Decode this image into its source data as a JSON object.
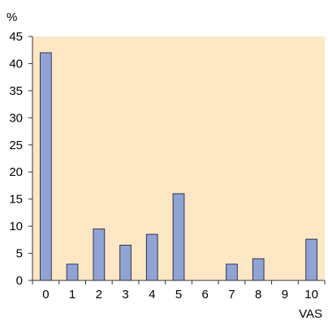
{
  "chart_data": {
    "type": "bar",
    "title": "",
    "ylabel": "%",
    "xlabel": "VAS",
    "categories": [
      "0",
      "1",
      "2",
      "3",
      "4",
      "5",
      "6",
      "7",
      "8",
      "9",
      "10"
    ],
    "values": [
      42,
      3,
      9.5,
      6.5,
      8.5,
      16,
      0,
      3,
      4,
      0,
      7.6
    ],
    "ylim": [
      0,
      45
    ],
    "yticks": [
      "0",
      "5",
      "10",
      "15",
      "20",
      "25",
      "30",
      "35",
      "40",
      "45"
    ],
    "grid": false,
    "legend": "none",
    "colors": {
      "plot_background": "#FDE7C4",
      "bar_fill": "#91A3D5",
      "bar_stroke": "#2B3550",
      "axis": "#333333",
      "text": "#000000"
    }
  }
}
